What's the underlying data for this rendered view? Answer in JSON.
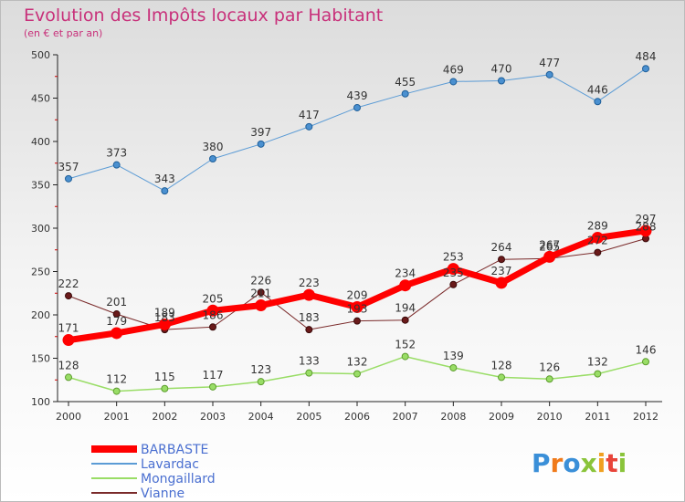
{
  "chart_data": {
    "type": "line",
    "title": "Evolution des Impôts locaux par Habitant",
    "subtitle": "(en € et par an)",
    "x": [
      "2000",
      "2001",
      "2002",
      "2003",
      "2004",
      "2005",
      "2006",
      "2007",
      "2008",
      "2009",
      "2010",
      "2011",
      "2012"
    ],
    "ylim": [
      100,
      500
    ],
    "yticks": [
      100,
      150,
      200,
      250,
      300,
      350,
      400,
      450,
      500
    ],
    "grid": false,
    "legend_position": "bottom-left",
    "series": [
      {
        "name": "BARBASTE",
        "color": "#ff0000",
        "values": [
          171,
          179,
          189,
          205,
          211,
          223,
          209,
          234,
          253,
          237,
          267,
          289,
          297
        ]
      },
      {
        "name": "Lavardac",
        "color": "#5b9bd5",
        "values": [
          357,
          373,
          343,
          380,
          397,
          417,
          439,
          455,
          469,
          470,
          477,
          446,
          484
        ]
      },
      {
        "name": "Mongaillard",
        "color": "#99dd66",
        "values": [
          128,
          112,
          115,
          117,
          123,
          133,
          132,
          152,
          139,
          128,
          126,
          132,
          146
        ]
      },
      {
        "name": "Vianne",
        "color": "#7a2a2a",
        "values": [
          222,
          201,
          183,
          186,
          226,
          183,
          193,
          194,
          235,
          264,
          265,
          272,
          288
        ]
      }
    ],
    "logo": {
      "text": "Proxiti"
    }
  }
}
